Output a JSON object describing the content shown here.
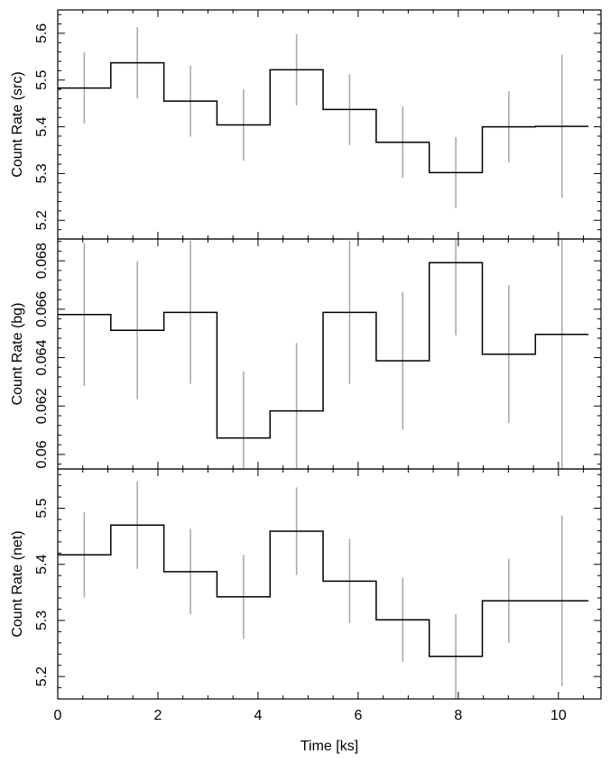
{
  "chart_data": [
    {
      "type": "line",
      "step": true,
      "ylabel": "Count Rate (src)",
      "xlim": [
        0,
        10.85
      ],
      "ylim": [
        5.16,
        5.65
      ],
      "yticks": [
        5.2,
        5.3,
        5.4,
        5.5,
        5.6
      ],
      "ytick_labels": [
        "5.2",
        "5.3",
        "5.4",
        "5.5",
        "5.6"
      ],
      "colors": {
        "line": "#000000",
        "errorbar": "#aaaaaa"
      },
      "bin_edges": [
        0,
        1.06,
        2.12,
        3.18,
        4.24,
        5.3,
        6.36,
        7.42,
        8.48,
        9.54,
        10.6
      ],
      "bin_centers": [
        0.53,
        1.59,
        2.65,
        3.71,
        4.77,
        5.83,
        6.89,
        7.95,
        9.01,
        10.07
      ],
      "values": [
        5.483,
        5.537,
        5.455,
        5.404,
        5.522,
        5.437,
        5.367,
        5.302,
        5.4,
        5.401
      ],
      "errors": [
        0.076,
        0.076,
        0.076,
        0.076,
        0.076,
        0.076,
        0.076,
        0.076,
        0.076,
        0.153
      ]
    },
    {
      "type": "line",
      "step": true,
      "ylabel": "Count Rate (bg)",
      "xlim": [
        0,
        10.85
      ],
      "ylim": [
        0.0594,
        0.0689
      ],
      "yticks": [
        0.06,
        0.062,
        0.064,
        0.066,
        0.068
      ],
      "ytick_labels": [
        "0.06",
        "0.062",
        "0.064",
        "0.066",
        "0.068"
      ],
      "colors": {
        "line": "#000000",
        "errorbar": "#aaaaaa"
      },
      "bin_edges": [
        0,
        1.06,
        2.12,
        3.18,
        4.24,
        5.3,
        6.36,
        7.42,
        8.48,
        9.54,
        10.6
      ],
      "bin_centers": [
        0.53,
        1.59,
        2.65,
        3.71,
        4.77,
        5.83,
        6.89,
        7.95,
        9.01,
        10.07
      ],
      "values": [
        0.06578,
        0.06513,
        0.06587,
        0.06068,
        0.0618,
        0.06587,
        0.06387,
        0.06792,
        0.06414,
        0.06496
      ],
      "errors": [
        0.00295,
        0.00285,
        0.00295,
        0.00275,
        0.0028,
        0.00295,
        0.00285,
        0.003,
        0.00285,
        0.0056
      ]
    },
    {
      "type": "line",
      "step": true,
      "ylabel": "Count Rate (net)",
      "xlabel": "Time [ks]",
      "xlim": [
        0,
        10.85
      ],
      "xticks": [
        0,
        2,
        4,
        6,
        8,
        10
      ],
      "xtick_labels": [
        "0",
        "2",
        "4",
        "6",
        "8",
        "10"
      ],
      "ylim": [
        5.16,
        5.57
      ],
      "yticks": [
        5.2,
        5.3,
        5.4,
        5.5
      ],
      "ytick_labels": [
        "5.2",
        "5.3",
        "5.4",
        "5.5"
      ],
      "colors": {
        "line": "#000000",
        "errorbar": "#aaaaaa"
      },
      "bin_edges": [
        0,
        1.06,
        2.12,
        3.18,
        4.24,
        5.3,
        6.36,
        7.42,
        8.48,
        9.54,
        10.6
      ],
      "bin_centers": [
        0.53,
        1.59,
        2.65,
        3.71,
        4.77,
        5.83,
        6.89,
        7.95,
        9.01,
        10.07
      ],
      "values": [
        5.417,
        5.47,
        5.387,
        5.342,
        5.459,
        5.37,
        5.301,
        5.236,
        5.335,
        5.335
      ],
      "errors": [
        0.076,
        0.078,
        0.076,
        0.075,
        0.078,
        0.075,
        0.075,
        0.075,
        0.075,
        0.152
      ]
    }
  ]
}
